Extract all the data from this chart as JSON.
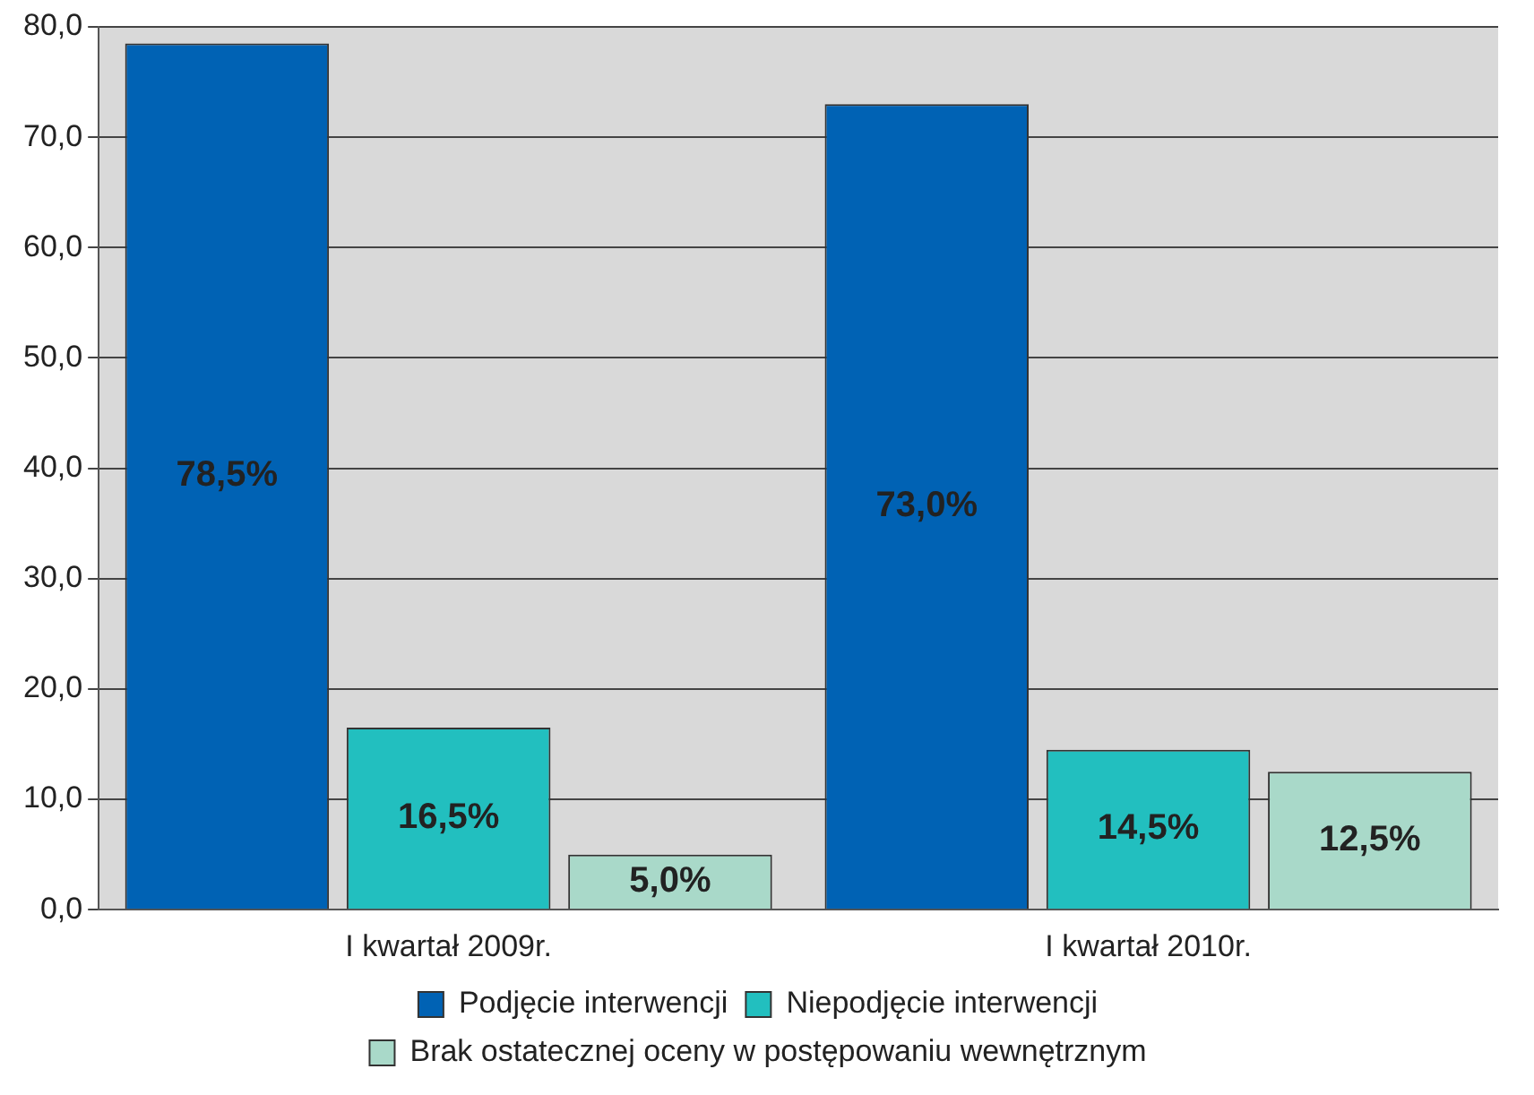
{
  "chart_data": {
    "type": "bar",
    "categories": [
      "I kwartał 2009r.",
      "I kwartał 2010r."
    ],
    "series": [
      {
        "name": "Podjęcie interwencji",
        "color": "#0062b4",
        "values": [
          78.5,
          73.0
        ],
        "value_labels": [
          "78,5%",
          "73,0%"
        ]
      },
      {
        "name": "Niepodjęcie interwencji",
        "color": "#22bfbf",
        "values": [
          16.5,
          14.5
        ],
        "value_labels": [
          "16,5%",
          "14,5%"
        ]
      },
      {
        "name": "Brak ostatecznej oceny w postępowaniu wewnętrznym",
        "color": "#a9d9c9",
        "values": [
          5.0,
          12.5
        ],
        "value_labels": [
          "5,0%",
          "12,5%"
        ]
      }
    ],
    "ylim": [
      0,
      80
    ],
    "yticks": [
      {
        "value": 0,
        "label": "0,0"
      },
      {
        "value": 10,
        "label": "10,0"
      },
      {
        "value": 20,
        "label": "20,0"
      },
      {
        "value": 30,
        "label": "30,0"
      },
      {
        "value": 40,
        "label": "40,0"
      },
      {
        "value": 50,
        "label": "50,0"
      },
      {
        "value": 60,
        "label": "60,0"
      },
      {
        "value": 70,
        "label": "70,0"
      },
      {
        "value": 80,
        "label": "80,0"
      }
    ],
    "grid": "y",
    "legend": "bottom"
  }
}
